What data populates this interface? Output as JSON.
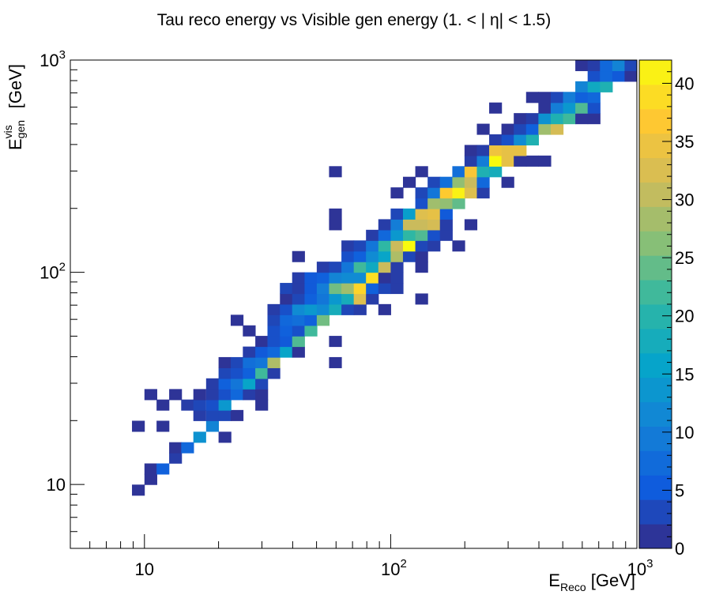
{
  "title": "Tau reco energy vs Visible gen energy (1. < |   η| < 1.5)",
  "x_axis": {
    "label_main": "E",
    "label_sub": "Reco",
    "label_unit": " [GeV]"
  },
  "y_axis": {
    "label_main": "E",
    "label_sup": "vis",
    "label_sub": "gen",
    "label_unit": " [GeV]"
  },
  "chart_data": {
    "type": "heatmap",
    "title": "Tau reco energy vs Visible gen energy (1. < |   η| < 1.5)",
    "xlabel": "E_Reco [GeV]",
    "ylabel": "E^vis_gen [GeV]",
    "x_scale": "log",
    "y_scale": "log",
    "xlim": [
      5,
      1000
    ],
    "ylim": [
      5,
      1000
    ],
    "x_ticks": [
      "10",
      "10^2",
      "10^3"
    ],
    "y_ticks": [
      "10",
      "10^2",
      "10^3"
    ],
    "colorbar": {
      "range": [
        0,
        42
      ],
      "ticks": [
        0,
        5,
        10,
        15,
        20,
        25,
        30,
        35,
        40
      ]
    },
    "bins_per_decade": 20,
    "cells": [
      [
        8.9,
        8.9,
        1
      ],
      [
        10,
        10,
        1
      ],
      [
        10,
        11.2,
        1
      ],
      [
        11.2,
        11.2,
        6
      ],
      [
        12.6,
        12.6,
        2
      ],
      [
        12.6,
        14.1,
        1
      ],
      [
        14.1,
        14.1,
        7
      ],
      [
        15.8,
        15.8,
        13
      ],
      [
        20,
        15.8,
        1
      ],
      [
        8.9,
        17.8,
        1
      ],
      [
        11.2,
        17.8,
        1
      ],
      [
        17.8,
        17.8,
        11
      ],
      [
        15.8,
        20,
        2
      ],
      [
        17.8,
        20,
        3
      ],
      [
        20,
        20,
        3
      ],
      [
        22.4,
        20,
        1
      ],
      [
        11.2,
        22.4,
        1
      ],
      [
        14.1,
        22.4,
        2
      ],
      [
        15.8,
        22.4,
        3
      ],
      [
        17.8,
        22.4,
        4
      ],
      [
        20,
        22.4,
        14
      ],
      [
        28.2,
        22.4,
        1
      ],
      [
        10,
        25.1,
        1
      ],
      [
        12.6,
        25.1,
        1
      ],
      [
        15.8,
        25.1,
        1
      ],
      [
        17.8,
        25.1,
        2
      ],
      [
        20,
        25.1,
        4
      ],
      [
        22.4,
        25.1,
        7
      ],
      [
        25.1,
        25.1,
        2
      ],
      [
        28.2,
        25.1,
        1
      ],
      [
        17.8,
        28.2,
        2
      ],
      [
        20,
        28.2,
        6
      ],
      [
        22.4,
        28.2,
        9
      ],
      [
        25.1,
        28.2,
        16
      ],
      [
        28.2,
        28.2,
        3
      ],
      [
        20,
        31.6,
        3
      ],
      [
        22.4,
        31.6,
        4
      ],
      [
        25.1,
        31.6,
        6
      ],
      [
        28.2,
        31.6,
        22
      ],
      [
        31.6,
        31.6,
        2
      ],
      [
        20,
        35.5,
        1
      ],
      [
        22.4,
        35.5,
        3
      ],
      [
        25.1,
        35.5,
        8
      ],
      [
        28.2,
        35.5,
        9
      ],
      [
        31.6,
        35.5,
        29
      ],
      [
        56.2,
        35.5,
        1
      ],
      [
        25.1,
        39.8,
        2
      ],
      [
        28.2,
        39.8,
        5
      ],
      [
        31.6,
        39.8,
        7
      ],
      [
        35.5,
        39.8,
        16
      ],
      [
        39.8,
        39.8,
        1
      ],
      [
        28.2,
        44.7,
        1
      ],
      [
        31.6,
        44.7,
        4
      ],
      [
        35.5,
        44.7,
        5
      ],
      [
        39.8,
        44.7,
        23
      ],
      [
        56.2,
        44.7,
        1
      ],
      [
        25.1,
        50.1,
        1
      ],
      [
        31.6,
        50.1,
        4
      ],
      [
        35.5,
        50.1,
        6
      ],
      [
        39.8,
        50.1,
        4
      ],
      [
        44.7,
        50.1,
        22
      ],
      [
        22.4,
        56.2,
        1
      ],
      [
        31.6,
        56.2,
        3
      ],
      [
        35.5,
        56.2,
        7
      ],
      [
        39.8,
        56.2,
        8
      ],
      [
        44.7,
        56.2,
        6
      ],
      [
        50.1,
        56.2,
        25
      ],
      [
        31.6,
        63.1,
        2
      ],
      [
        35.5,
        63.1,
        4
      ],
      [
        39.8,
        63.1,
        12
      ],
      [
        44.7,
        63.1,
        14
      ],
      [
        50.1,
        63.1,
        12
      ],
      [
        56.2,
        63.1,
        18
      ],
      [
        63.1,
        63.1,
        3
      ],
      [
        70.8,
        63.1,
        2
      ],
      [
        89.1,
        63.1,
        1
      ],
      [
        35.5,
        70.8,
        1
      ],
      [
        39.8,
        70.8,
        3
      ],
      [
        44.7,
        70.8,
        6
      ],
      [
        50.1,
        70.8,
        9
      ],
      [
        56.2,
        70.8,
        14
      ],
      [
        63.1,
        70.8,
        18
      ],
      [
        70.8,
        70.8,
        33
      ],
      [
        79.4,
        70.8,
        2
      ],
      [
        125.9,
        70.8,
        1
      ],
      [
        35.5,
        79.4,
        3
      ],
      [
        39.8,
        79.4,
        2
      ],
      [
        44.7,
        79.4,
        5
      ],
      [
        50.1,
        79.4,
        10
      ],
      [
        56.2,
        79.4,
        25
      ],
      [
        63.1,
        79.4,
        28
      ],
      [
        70.8,
        79.4,
        38
      ],
      [
        79.4,
        79.4,
        6
      ],
      [
        89.1,
        79.4,
        3
      ],
      [
        100,
        79.4,
        2
      ],
      [
        39.8,
        89.1,
        2
      ],
      [
        44.7,
        89.1,
        5
      ],
      [
        50.1,
        89.1,
        6
      ],
      [
        56.2,
        89.1,
        11
      ],
      [
        63.1,
        89.1,
        12
      ],
      [
        70.8,
        89.1,
        12
      ],
      [
        79.4,
        89.1,
        39
      ],
      [
        89.1,
        89.1,
        1
      ],
      [
        100,
        89.1,
        2
      ],
      [
        50.1,
        100,
        2
      ],
      [
        56.2,
        100,
        3
      ],
      [
        63.1,
        100,
        9
      ],
      [
        70.8,
        100,
        22
      ],
      [
        79.4,
        100,
        17
      ],
      [
        89.1,
        100,
        31
      ],
      [
        100,
        100,
        2
      ],
      [
        125.9,
        100,
        1
      ],
      [
        39.8,
        112.2,
        1
      ],
      [
        63.1,
        112.2,
        4
      ],
      [
        70.8,
        112.2,
        6
      ],
      [
        79.4,
        112.2,
        12
      ],
      [
        89.1,
        112.2,
        16
      ],
      [
        100,
        112.2,
        29
      ],
      [
        112.2,
        112.2,
        3
      ],
      [
        125.9,
        112.2,
        1
      ],
      [
        63.1,
        125.9,
        2
      ],
      [
        70.8,
        125.9,
        3
      ],
      [
        79.4,
        125.9,
        9
      ],
      [
        89.1,
        125.9,
        21
      ],
      [
        100,
        125.9,
        31
      ],
      [
        112.2,
        125.9,
        42
      ],
      [
        125.9,
        125.9,
        3
      ],
      [
        141.3,
        125.9,
        2
      ],
      [
        178,
        125.9,
        1
      ],
      [
        79.4,
        141.3,
        2
      ],
      [
        89.1,
        141.3,
        7
      ],
      [
        100,
        141.3,
        14
      ],
      [
        112.2,
        141.3,
        21
      ],
      [
        125.9,
        141.3,
        23
      ],
      [
        141.3,
        141.3,
        4
      ],
      [
        158.5,
        141.3,
        2
      ],
      [
        56.2,
        158.5,
        1
      ],
      [
        89.1,
        158.5,
        2
      ],
      [
        100,
        158.5,
        10
      ],
      [
        112.2,
        158.5,
        31
      ],
      [
        125.9,
        158.5,
        31
      ],
      [
        141.3,
        158.5,
        32
      ],
      [
        158.5,
        158.5,
        2
      ],
      [
        199.5,
        158.5,
        1
      ],
      [
        56.2,
        178,
        1
      ],
      [
        100,
        178,
        3
      ],
      [
        112.2,
        178,
        15
      ],
      [
        125.9,
        178,
        33
      ],
      [
        141.3,
        178,
        34
      ],
      [
        158.5,
        178,
        5
      ],
      [
        125.9,
        199.5,
        4
      ],
      [
        141.3,
        199.5,
        28
      ],
      [
        158.5,
        199.5,
        27
      ],
      [
        178,
        199.5,
        24
      ],
      [
        100,
        223.9,
        1
      ],
      [
        125.9,
        223.9,
        3
      ],
      [
        141.3,
        223.9,
        9
      ],
      [
        158.5,
        223.9,
        37
      ],
      [
        178,
        223.9,
        41
      ],
      [
        199.5,
        223.9,
        33
      ],
      [
        223.9,
        223.9,
        2
      ],
      [
        112.2,
        251.2,
        1
      ],
      [
        141.3,
        251.2,
        3
      ],
      [
        158.5,
        251.2,
        8
      ],
      [
        178,
        251.2,
        27
      ],
      [
        199.5,
        251.2,
        31
      ],
      [
        223.9,
        251.2,
        7
      ],
      [
        281.8,
        251.2,
        1
      ],
      [
        56.2,
        281.8,
        1
      ],
      [
        125.9,
        281.8,
        1
      ],
      [
        178,
        281.8,
        8
      ],
      [
        199.5,
        281.8,
        36
      ],
      [
        223.9,
        281.8,
        19
      ],
      [
        251.2,
        281.8,
        18
      ],
      [
        199.5,
        316.2,
        2
      ],
      [
        223.9,
        316.2,
        10
      ],
      [
        251.2,
        316.2,
        42
      ],
      [
        281.8,
        316.2,
        34
      ],
      [
        316.2,
        316.2,
        1
      ],
      [
        354.8,
        316.2,
        1
      ],
      [
        398.1,
        316.2,
        1
      ],
      [
        199.5,
        354.8,
        1
      ],
      [
        223.9,
        354.8,
        2
      ],
      [
        251.2,
        354.8,
        35
      ],
      [
        281.8,
        354.8,
        34
      ],
      [
        316.2,
        354.8,
        34
      ],
      [
        251.2,
        398.1,
        2
      ],
      [
        281.8,
        398.1,
        4
      ],
      [
        316.2,
        398.1,
        12
      ],
      [
        354.8,
        398.1,
        19
      ],
      [
        223.9,
        446.7,
        1
      ],
      [
        281.8,
        446.7,
        1
      ],
      [
        316.2,
        446.7,
        3
      ],
      [
        354.8,
        446.7,
        6
      ],
      [
        398.1,
        446.7,
        28
      ],
      [
        446.7,
        446.7,
        32
      ],
      [
        316.2,
        501.2,
        1
      ],
      [
        354.8,
        501.2,
        2
      ],
      [
        398.1,
        501.2,
        13
      ],
      [
        446.7,
        501.2,
        19
      ],
      [
        501.2,
        501.2,
        22
      ],
      [
        562.3,
        501.2,
        1
      ],
      [
        631,
        501.2,
        1
      ],
      [
        251.2,
        562.3,
        1
      ],
      [
        398.1,
        562.3,
        1
      ],
      [
        446.7,
        562.3,
        10
      ],
      [
        501.2,
        562.3,
        14
      ],
      [
        562.3,
        562.3,
        23
      ],
      [
        631,
        562.3,
        4
      ],
      [
        354.8,
        631,
        1
      ],
      [
        398.1,
        631,
        1
      ],
      [
        446.7,
        631,
        3
      ],
      [
        501.2,
        631,
        10
      ],
      [
        562.3,
        631,
        6
      ],
      [
        631,
        631,
        7
      ],
      [
        562.3,
        707.9,
        11
      ],
      [
        631,
        707.9,
        17
      ],
      [
        707.9,
        707.9,
        19
      ],
      [
        631,
        794.3,
        4
      ],
      [
        707.9,
        794.3,
        7
      ],
      [
        794.3,
        794.3,
        5
      ],
      [
        891.3,
        794.3,
        1
      ],
      [
        562.3,
        891.3,
        1
      ],
      [
        631,
        891.3,
        2
      ],
      [
        707.9,
        891.3,
        7
      ],
      [
        794.3,
        891.3,
        11
      ],
      [
        891.3,
        891.3,
        3
      ],
      [
        707.9,
        1000,
        2
      ],
      [
        794.3,
        1000,
        6
      ],
      [
        891.3,
        1000,
        2
      ],
      [
        501.2,
        1122,
        1
      ],
      [
        794.3,
        1122,
        1
      ],
      [
        891.3,
        1122,
        3
      ],
      [
        1000,
        1122,
        6
      ]
    ]
  }
}
